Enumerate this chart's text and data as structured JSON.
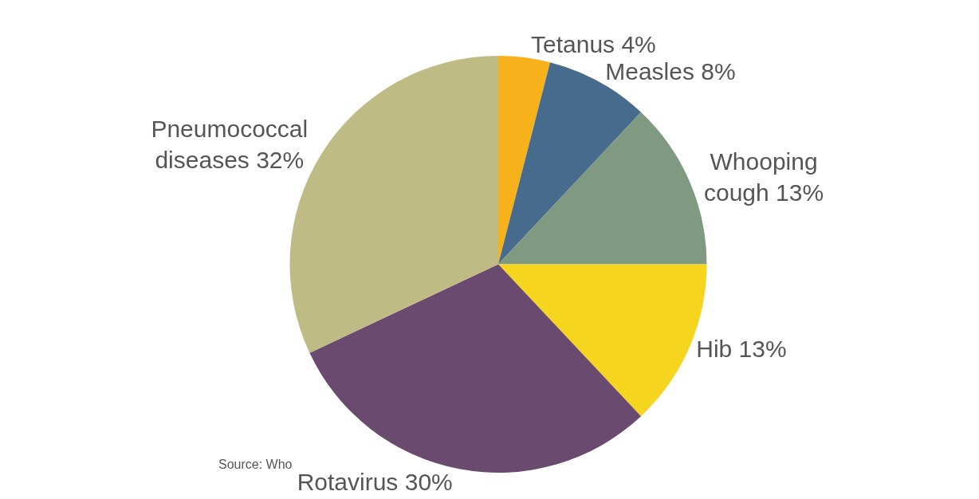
{
  "chart_data": {
    "type": "pie",
    "categories": [
      "Tetanus",
      "Measles",
      "Whooping cough",
      "Hib",
      "Rotavirus",
      "Pneumococcal diseases"
    ],
    "values": [
      4,
      8,
      13,
      13,
      30,
      32
    ],
    "value_labels": [
      "4%",
      "8%",
      "13%",
      "13%",
      "30%",
      "32%"
    ],
    "colors": [
      "#f6b11b",
      "#466b8c",
      "#7f9a80",
      "#f5d51e",
      "#6a4a6e",
      "#bfbb84"
    ],
    "annotations": [
      "Source: Who"
    ],
    "legend": false
  }
}
